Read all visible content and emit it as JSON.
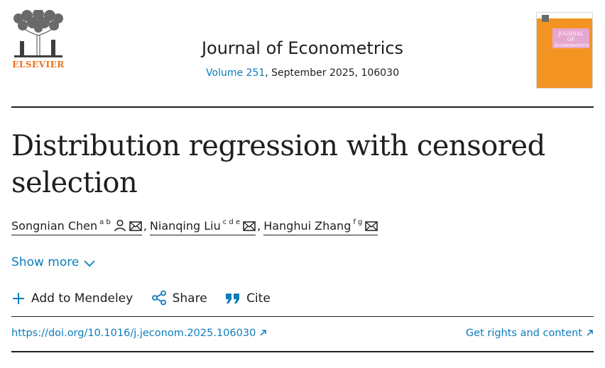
{
  "publisher": {
    "name": "ELSEVIER",
    "logo_icon": "elsevier-tree-icon"
  },
  "journal": {
    "title": "Journal of Econometrics",
    "volume_label": "Volume 251",
    "issue_rest": ", September 2025, 106030",
    "cover_text": "JOURNAL OF Econometrics"
  },
  "article": {
    "title": "Distribution regression with censored selection"
  },
  "authors": [
    {
      "name": "Songnian Chen",
      "affiliations": "a b",
      "icons": [
        "person-icon",
        "email-icon"
      ]
    },
    {
      "name": "Nianqing Liu",
      "affiliations": "c d e",
      "icons": [
        "email-icon"
      ]
    },
    {
      "name": "Hanghui Zhang",
      "affiliations": "f g",
      "icons": [
        "email-icon"
      ]
    }
  ],
  "author_separator": ",",
  "show_more": {
    "label": "Show more",
    "icon": "chevron-down-icon"
  },
  "actions": {
    "mendeley": {
      "label": "Add to Mendeley",
      "icon": "plus-icon"
    },
    "share": {
      "label": "Share",
      "icon": "share-icon"
    },
    "cite": {
      "label": "Cite",
      "icon": "quote-icon"
    }
  },
  "links": {
    "doi": "https://doi.org/10.1016/j.jeconom.2025.106030",
    "rights": "Get rights and content",
    "external_icon": "external-arrow-icon"
  },
  "colors": {
    "link": "#0c7dbb",
    "publisher": "#e9711c",
    "cover": "#f39422",
    "cover_box": "#e5a6cf"
  }
}
